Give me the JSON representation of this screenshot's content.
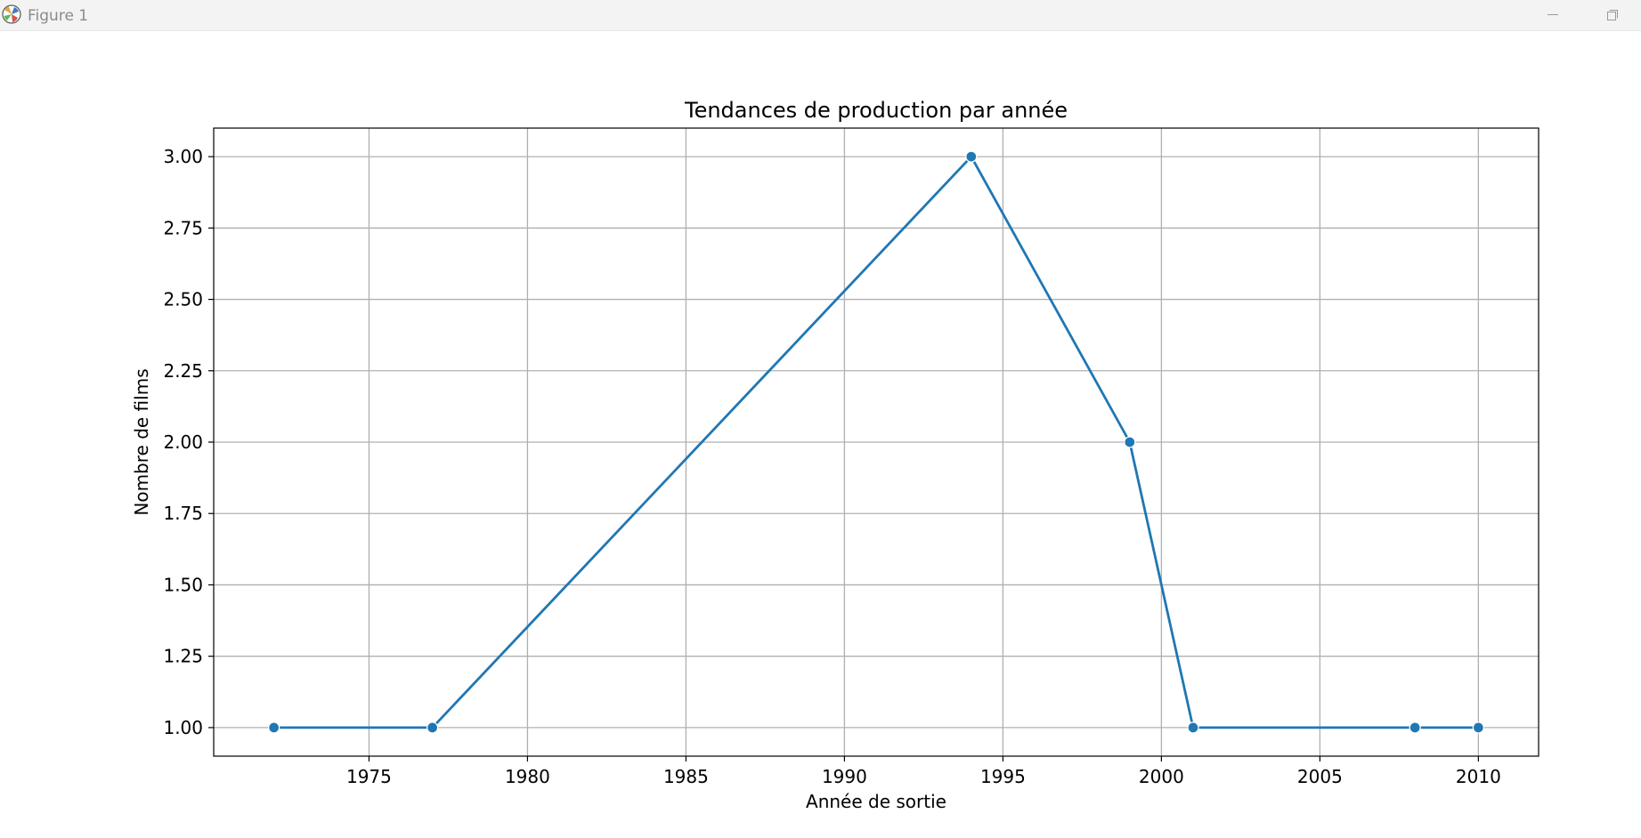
{
  "window": {
    "title": "Figure 1",
    "icons": {
      "app": "matplotlib-icon",
      "minimize": "minimize-icon",
      "maximize": "restore-icon"
    }
  },
  "chart_data": {
    "type": "line",
    "title": "Tendances de production par année",
    "xlabel": "Année de sortie",
    "ylabel": "Nombre de films",
    "x": [
      1972,
      1977,
      1994,
      1999,
      2001,
      2008,
      2010
    ],
    "series": [
      {
        "values": [
          1,
          1,
          3,
          2,
          1,
          1,
          1
        ],
        "color": "#1f77b4"
      }
    ],
    "xlim": [
      1970.1,
      2011.9
    ],
    "ylim": [
      0.9,
      3.1
    ],
    "xticks": [
      1975,
      1980,
      1985,
      1990,
      1995,
      2000,
      2005,
      2010
    ],
    "yticks": [
      1.0,
      1.25,
      1.5,
      1.75,
      2.0,
      2.25,
      2.5,
      2.75,
      3.0
    ],
    "ytick_labels": [
      "1.00",
      "1.25",
      "1.50",
      "1.75",
      "2.00",
      "2.25",
      "2.50",
      "2.75",
      "3.00"
    ],
    "grid": true,
    "marker": "circle",
    "line_color": "#1f77b4",
    "grid_color": "#b0b0b0"
  }
}
